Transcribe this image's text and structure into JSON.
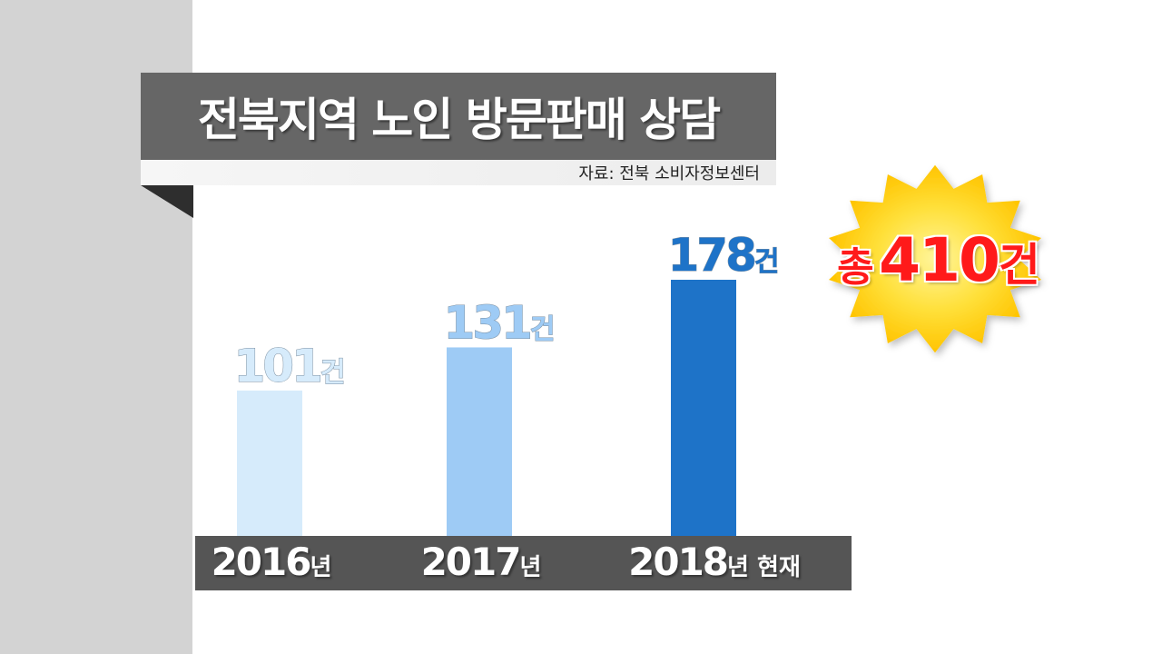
{
  "title": "전북지역 노인 방문판매 상담",
  "source": "자료: 전북 소비자정보센터",
  "total": {
    "prefix": "총",
    "value": "410",
    "unit": "건"
  },
  "colors": {
    "title_bg": "#666666",
    "bar_2016": "#d6ebfb",
    "bar_2017": "#9ecbf5",
    "bar_2018": "#1e73c8",
    "total_text": "#ff1a1a",
    "sun": "#ffd21a"
  },
  "chart_data": {
    "type": "bar",
    "title": "전북지역 노인 방문판매 상담",
    "categories": [
      "2016년",
      "2017년",
      "2018년 현재"
    ],
    "values": [
      101,
      131,
      178
    ],
    "value_unit": "건",
    "value_labels": [
      "101건",
      "131건",
      "178건"
    ],
    "category_years": [
      "2016",
      "2017",
      "2018"
    ],
    "category_suffixes": [
      "년",
      "년",
      "년 현재"
    ],
    "grid": false,
    "legend": "none"
  }
}
